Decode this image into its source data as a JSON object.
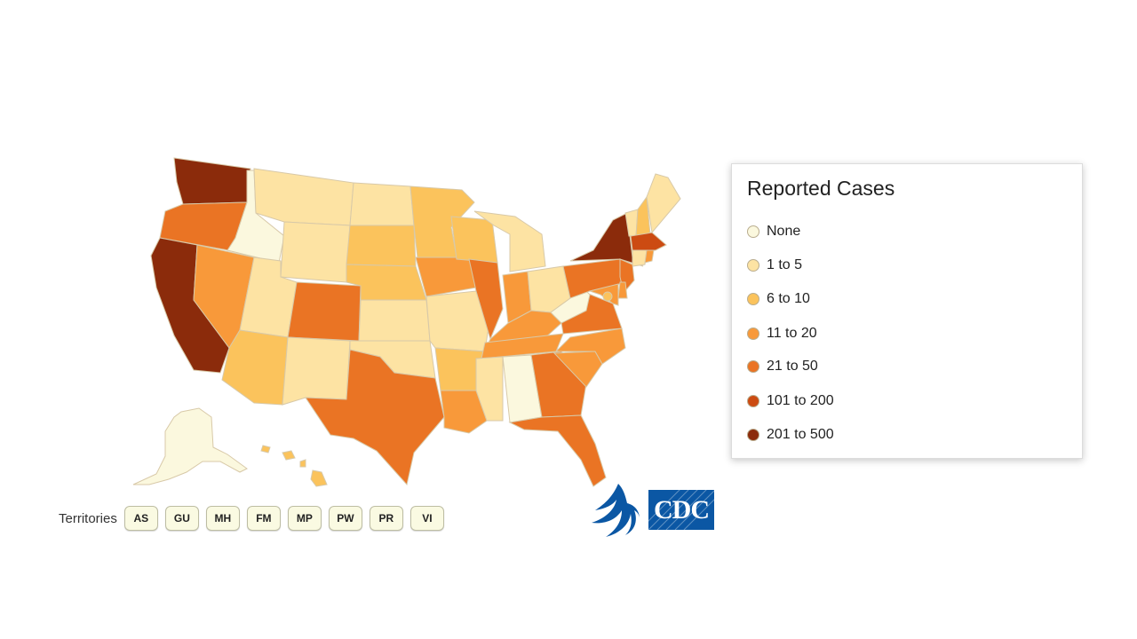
{
  "colors": {
    "none": "#fbf8de",
    "1_5": "#fde3a3",
    "6_10": "#fbc35c",
    "11_20": "#f8993a",
    "21_50": "#ea7424",
    "101_200": "#cc4b12",
    "201_500": "#8b2b0b",
    "cdc_blue": "#0b57a4",
    "legend_border": "#dcdcdc"
  },
  "legend": {
    "title": "Reported Cases",
    "items": [
      {
        "label": "None",
        "color_key": "none"
      },
      {
        "label": "1 to 5",
        "color_key": "1_5"
      },
      {
        "label": "6 to 10",
        "color_key": "6_10"
      },
      {
        "label": "11 to 20",
        "color_key": "11_20"
      },
      {
        "label": "21 to 50",
        "color_key": "21_50"
      },
      {
        "label": "101 to 200",
        "color_key": "101_200"
      },
      {
        "label": "201 to 500",
        "color_key": "201_500"
      }
    ]
  },
  "states": {
    "WA": "201_500",
    "OR": "21_50",
    "CA": "201_500",
    "NV": "11_20",
    "ID": "none",
    "MT": "1_5",
    "WY": "1_5",
    "UT": "1_5",
    "AZ": "6_10",
    "CO": "21_50",
    "NM": "1_5",
    "ND": "1_5",
    "SD": "6_10",
    "NE": "6_10",
    "KS": "1_5",
    "OK": "1_5",
    "TX": "21_50",
    "MN": "6_10",
    "IA": "11_20",
    "MO": "1_5",
    "AR": "6_10",
    "LA": "11_20",
    "WI": "6_10",
    "IL": "21_50",
    "MI": "1_5",
    "IN": "11_20",
    "OH": "1_5",
    "KY": "11_20",
    "TN": "11_20",
    "MS": "1_5",
    "AL": "none",
    "GA": "21_50",
    "FL": "21_50",
    "SC": "11_20",
    "NC": "11_20",
    "VA": "21_50",
    "WV": "none",
    "PA": "21_50",
    "NY": "201_500",
    "VT": "1_5",
    "NH": "6_10",
    "ME": "1_5",
    "MA": "101_200",
    "CT": "1_5",
    "RI": "11_20",
    "NJ": "21_50",
    "DE": "11_20",
    "MD": "11_20",
    "DC": "6_10",
    "AK": "none",
    "HI": "6_10"
  },
  "territories": {
    "label": "Territories",
    "buttons": [
      "AS",
      "GU",
      "MH",
      "FM",
      "MP",
      "PW",
      "PR",
      "VI"
    ]
  },
  "logo": {
    "cdc_text": "CDC"
  }
}
